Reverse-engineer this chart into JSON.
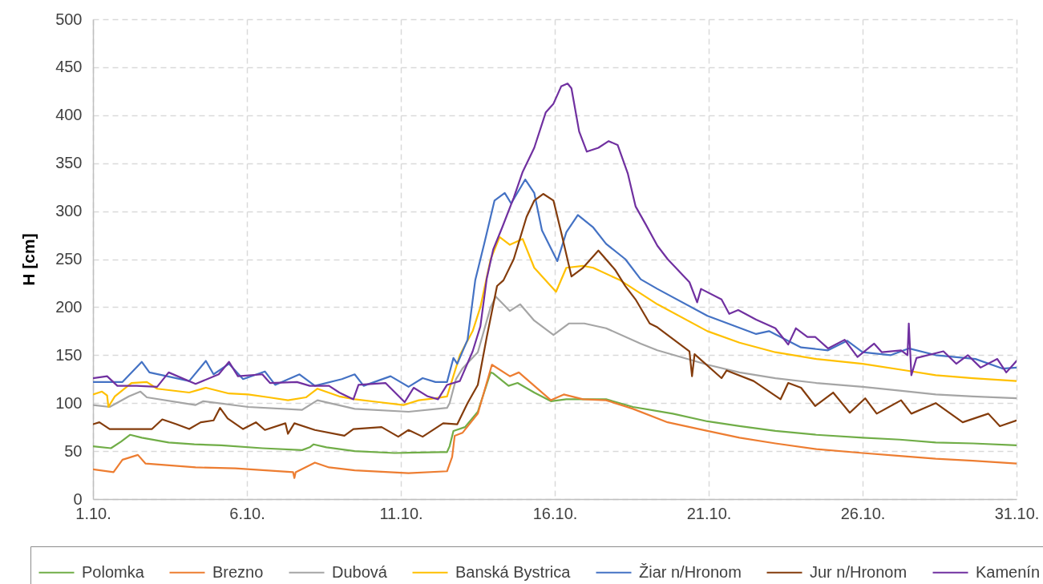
{
  "chart_data": {
    "type": "line",
    "ylabel": "H [cm]",
    "xlim": [
      "--10-01",
      "--10-31"
    ],
    "xticks": [
      {
        "value": "--10-01",
        "label": "1.10."
      },
      {
        "value": "--10-06",
        "label": "6.10."
      },
      {
        "value": "--10-11",
        "label": "11.10."
      },
      {
        "value": "--10-16",
        "label": "16.10."
      },
      {
        "value": "--10-21",
        "label": "21.10."
      },
      {
        "value": "--10-26",
        "label": "26.10."
      },
      {
        "value": "--10-31",
        "label": "31.10."
      }
    ],
    "ylim": [
      0,
      500
    ],
    "yticks": [
      0,
      50,
      100,
      150,
      200,
      250,
      300,
      350,
      400,
      450,
      500
    ],
    "grid": true,
    "legend": "bottom",
    "series": [
      {
        "name": "Polomka",
        "color": "#70ad47",
        "x": [
          "--10-01T00:00",
          "--10-01T14:00",
          "--10-01T22:00",
          "--10-02T05:00",
          "--10-02T14:00",
          "--10-03T11:00",
          "--10-04T07:00",
          "--10-05T04:00",
          "--10-06T12:00",
          "--10-07T19:00",
          "--10-08T01:00",
          "--10-08T04:00",
          "--10-08T14:00",
          "--10-09T12:00",
          "--10-10T19:00",
          "--10-12T07:00",
          "--10-12T12:00",
          "--10-12T14:00",
          "--10-12T17:00",
          "--10-13T02:00",
          "--10-13T12:00",
          "--10-13T22:00",
          "--10-14T00:00",
          "--10-14T12:00",
          "--10-14T19:00",
          "--10-15T08:00",
          "--10-15T21:00",
          "--10-16T09:00",
          "--10-17T00:00",
          "--10-17T16:00",
          "--10-18T13:00",
          "--10-19T20:00",
          "--10-20T23:00",
          "--10-22T00:00",
          "--10-23T04:00",
          "--10-24T12:00",
          "--10-26T00:00",
          "--10-27T05:00",
          "--10-28T09:00",
          "--10-29T14:00",
          "--10-31T00:00"
        ],
        "values": [
          55,
          53,
          60,
          67,
          64,
          59,
          57,
          56,
          53,
          51,
          54,
          57,
          54,
          50,
          48,
          49,
          49,
          55,
          71,
          75,
          91,
          132,
          131,
          118,
          121,
          111,
          102,
          104,
          104,
          104,
          96,
          89,
          81,
          76,
          71,
          67,
          64,
          62,
          59,
          58,
          56
        ]
      },
      {
        "name": "Brezno",
        "color": "#ed7d31",
        "x": [
          "--10-01T00:00",
          "--10-01T16:00",
          "--10-01T23:00",
          "--10-02T11:00",
          "--10-02T17:00",
          "--10-04T08:00",
          "--10-05T15:00",
          "--10-07T12:00",
          "--10-07T13:00",
          "--10-07T14:00",
          "--10-08T05:00",
          "--10-08T16:00",
          "--10-09T12:00",
          "--10-11T06:00",
          "--10-12T12:00",
          "--10-12T16:00",
          "--10-12T18:00",
          "--10-13T00:00",
          "--10-13T12:00",
          "--10-13T23:00",
          "--10-14T13:00",
          "--10-14T20:00",
          "--10-15T21:00",
          "--10-16T07:00",
          "--10-16T22:00",
          "--10-17T16:00",
          "--10-18T13:00",
          "--10-19T16:00",
          "--10-20T23:00",
          "--10-22T00:00",
          "--10-23T04:00",
          "--10-24T12:00",
          "--10-26T00:00",
          "--10-27T05:00",
          "--10-28T09:00",
          "--10-29T14:00",
          "--10-31T00:00"
        ],
        "values": [
          31,
          28,
          41,
          46,
          37,
          33,
          32,
          28,
          22,
          28,
          38,
          33,
          30,
          27,
          29,
          44,
          66,
          69,
          89,
          140,
          128,
          132,
          103,
          109,
          104,
          103,
          94,
          80,
          71,
          64,
          58,
          52,
          48,
          45,
          42,
          40,
          37
        ]
      },
      {
        "name": "Dubová",
        "color": "#a5a5a5",
        "x": [
          "--10-01T00:00",
          "--10-01T13:00",
          "--10-02T04:00",
          "--10-02T13:00",
          "--10-02T18:00",
          "--10-04T08:00",
          "--10-04T14:00",
          "--10-06T01:00",
          "--10-07T19:00",
          "--10-08T07:00",
          "--10-09T12:00",
          "--10-11T06:00",
          "--10-12T12:00",
          "--10-12T14:00",
          "--10-12T19:00",
          "--10-13T00:00",
          "--10-13T12:00",
          "--10-13T22:00",
          "--10-14T02:00",
          "--10-14T13:00",
          "--10-14T21:00",
          "--10-15T08:00",
          "--10-15T23:00",
          "--10-16T11:00",
          "--10-16T23:00",
          "--10-17T16:00",
          "--10-18T19:00",
          "--10-19T08:00",
          "--10-20T23:00",
          "--10-22T00:00",
          "--10-23T04:00",
          "--10-24T12:00",
          "--10-26T00:00",
          "--10-27T05:00",
          "--10-28T09:00",
          "--10-29T14:00",
          "--10-31T00:00"
        ],
        "values": [
          98,
          96,
          107,
          112,
          106,
          98,
          102,
          96,
          93,
          103,
          94,
          91,
          95,
          100,
          125,
          136,
          153,
          200,
          211,
          196,
          203,
          186,
          171,
          183,
          183,
          178,
          162,
          155,
          140,
          132,
          126,
          121,
          117,
          113,
          109,
          107,
          105
        ]
      },
      {
        "name": "Banská Bystrica",
        "color": "#ffc000",
        "x": [
          "--10-01T00:00",
          "--10-01T07:00",
          "--10-01T11:00",
          "--10-01T12:00",
          "--10-01T17:00",
          "--10-02T06:00",
          "--10-02T18:00",
          "--10-03T02:00",
          "--10-04T03:00",
          "--10-04T16:00",
          "--10-05T10:00",
          "--10-06T01:00",
          "--10-06T17:00",
          "--10-07T08:00",
          "--10-07T22:00",
          "--10-08T07:00",
          "--10-09T00:00",
          "--10-09T12:00",
          "--10-10T07:00",
          "--10-11T02:00",
          "--10-11T14:00",
          "--10-12T03:00",
          "--10-12T12:00",
          "--10-12T22:00",
          "--10-13T08:00",
          "--10-13T14:00",
          "--10-13T22:00",
          "--10-14T05:00",
          "--10-14T13:00",
          "--10-14T23:00",
          "--10-15T08:00",
          "--10-16T01:00",
          "--10-16T09:00",
          "--10-16T22:00",
          "--10-17T06:00",
          "--10-18T03:00",
          "--10-19T08:00",
          "--10-20T23:00",
          "--10-22T00:00",
          "--10-23T04:00",
          "--10-24T12:00",
          "--10-26T00:00",
          "--10-27T10:00",
          "--10-28T09:00",
          "--10-29T14:00",
          "--10-31T00:00"
        ],
        "values": [
          109,
          112,
          108,
          96,
          107,
          121,
          122,
          115,
          111,
          116,
          110,
          109,
          106,
          103,
          106,
          115,
          107,
          104,
          101,
          98,
          103,
          105,
          107,
          150,
          175,
          200,
          250,
          273,
          265,
          271,
          241,
          216,
          241,
          243,
          241,
          228,
          203,
          175,
          163,
          153,
          146,
          141,
          134,
          129,
          126,
          123
        ]
      },
      {
        "name": "Žiar n/Hronom",
        "color": "#4472c4",
        "x": [
          "--10-01T00:00",
          "--10-01T23:00",
          "--10-02T14:00",
          "--10-02T20:00",
          "--10-04T03:00",
          "--10-04T16:00",
          "--10-04T22:00",
          "--10-05T10:00",
          "--10-05T21:00",
          "--10-06T14:00",
          "--10-06T22:00",
          "--10-07T17:00",
          "--10-08T05:00",
          "--10-09T02:00",
          "--10-09T12:00",
          "--10-09T19:00",
          "--10-10T16:00",
          "--10-11T06:00",
          "--10-11T17:00",
          "--10-12T03:00",
          "--10-12T12:00",
          "--10-12T17:00",
          "--10-12T20:00",
          "--10-13T04:00",
          "--10-13T10:00",
          "--10-13T17:00",
          "--10-14T01:00",
          "--10-14T09:00",
          "--10-14T14:00",
          "--10-15T01:00",
          "--10-15T08:00",
          "--10-15T14:00",
          "--10-16T02:00",
          "--10-16T09:00",
          "--10-16T18:00",
          "--10-17T06:00",
          "--10-17T16:00",
          "--10-18T07:00",
          "--10-18T19:00",
          "--10-19T08:00",
          "--10-20T23:00",
          "--10-22T13:00",
          "--10-22T23:00",
          "--10-24T00:00",
          "--10-24T21:00",
          "--10-25T12:00",
          "--10-26T00:00",
          "--10-26T22:00",
          "--10-27T12:00",
          "--10-28T09:00",
          "--10-29T16:00",
          "--10-30T13:00",
          "--10-31T00:00"
        ],
        "values": [
          122,
          122,
          143,
          132,
          123,
          144,
          130,
          141,
          125,
          133,
          119,
          130,
          118,
          125,
          130,
          118,
          128,
          117,
          126,
          122,
          122,
          147,
          141,
          166,
          228,
          266,
          311,
          319,
          308,
          333,
          319,
          280,
          248,
          278,
          296,
          283,
          266,
          250,
          229,
          219,
          191,
          172,
          175,
          158,
          155,
          165,
          153,
          150,
          157,
          150,
          146,
          136,
          137
        ]
      },
      {
        "name": "Jur n/Hronom",
        "color": "#843c0c",
        "x": [
          "--10-01T00:00",
          "--10-01T05:00",
          "--10-01T13:00",
          "--10-02T22:00",
          "--10-03T06:00",
          "--10-03T17:00",
          "--10-04T03:00",
          "--10-04T12:00",
          "--10-04T22:00",
          "--10-05T03:00",
          "--10-05T09:00",
          "--10-05T21:00",
          "--10-06T07:00",
          "--10-06T14:00",
          "--10-07T06:00",
          "--10-07T08:00",
          "--10-07T13:00",
          "--10-08T05:00",
          "--10-09T04:00",
          "--10-09T11:00",
          "--10-10T09:00",
          "--10-10T22:00",
          "--10-11T06:00",
          "--10-11T17:00",
          "--10-12T09:00",
          "--10-12T20:00",
          "--10-13T04:00",
          "--10-13T12:00",
          "--10-13T19:00",
          "--10-14T03:00",
          "--10-14T08:00",
          "--10-14T16:00",
          "--10-15T02:00",
          "--10-15T08:00",
          "--10-15T15:00",
          "--10-15T23:00",
          "--10-16T05:00",
          "--10-16T13:00",
          "--10-16T22:00",
          "--10-17T10:00",
          "--10-17T23:00",
          "--10-18T07:00",
          "--10-18T15:00",
          "--10-19T02:00",
          "--10-19T08:00",
          "--10-20T09:00",
          "--10-20T11:00",
          "--10-20T13:00",
          "--10-21T10:00",
          "--10-21T14:00",
          "--10-22T11:00",
          "--10-23T08:00",
          "--10-23T14:00",
          "--10-24T00:00",
          "--10-24T11:00",
          "--10-25T01:00",
          "--10-25T14:00",
          "--10-26T02:00",
          "--10-26T11:00",
          "--10-27T06:00",
          "--10-27T14:00",
          "--10-28T09:00",
          "--10-29T06:00",
          "--10-30T02:00",
          "--10-30T11:00",
          "--10-31T00:00"
        ],
        "values": [
          78,
          80,
          73,
          73,
          83,
          78,
          73,
          80,
          82,
          95,
          84,
          73,
          80,
          72,
          79,
          68,
          79,
          72,
          66,
          73,
          75,
          65,
          72,
          65,
          79,
          78,
          100,
          119,
          169,
          222,
          228,
          250,
          294,
          311,
          318,
          311,
          278,
          232,
          241,
          259,
          239,
          222,
          208,
          183,
          179,
          154,
          128,
          151,
          126,
          134,
          123,
          104,
          121,
          116,
          97,
          111,
          90,
          105,
          89,
          103,
          89,
          100,
          80,
          89,
          76,
          82
        ]
      },
      {
        "name": "Kamenín",
        "color": "#7030a0",
        "x": [
          "--10-01T00:00",
          "--10-01T11:00",
          "--10-01T19:00",
          "--10-02T10:00",
          "--10-03T02:00",
          "--10-03T11:00",
          "--10-04T08:00",
          "--10-05T02:00",
          "--10-05T10:00",
          "--10-05T17:00",
          "--10-06T12:00",
          "--10-06T18:00",
          "--10-07T15:00",
          "--10-08T01:00",
          "--10-08T16:00",
          "--10-09T00:00",
          "--10-09T11:00",
          "--10-09T15:00",
          "--10-10T12:00",
          "--10-11T03:00",
          "--10-11T10:00",
          "--10-11T21:00",
          "--10-12T05:00",
          "--10-12T12:00",
          "--10-12T22:00",
          "--10-13T08:00",
          "--10-13T14:00",
          "--10-13T19:00",
          "--10-14T00:00",
          "--10-14T07:00",
          "--10-14T16:00",
          "--10-14T23:00",
          "--10-15T08:00",
          "--10-15T17:00",
          "--10-15T23:00",
          "--10-16T05:00",
          "--10-16T10:00",
          "--10-16T13:00",
          "--10-16T19:00",
          "--10-17T01:00",
          "--10-17T10:00",
          "--10-17T18:00",
          "--10-18T01:00",
          "--10-18T09:00",
          "--10-18T15:00",
          "--10-18T23:00",
          "--10-19T08:00",
          "--10-19T16:00",
          "--10-20T09:00",
          "--10-20T15:00",
          "--10-20T18:00",
          "--10-21T10:00",
          "--10-21T16:00",
          "--10-21T23:00",
          "--10-22T13:00",
          "--10-23T04:00",
          "--10-23T14:00",
          "--10-23T20:00",
          "--10-24T05:00",
          "--10-24T11:00",
          "--10-24T21:00",
          "--10-25T10:00",
          "--10-25T20:00",
          "--10-26T09:00",
          "--10-26T15:00",
          "--10-27T06:00",
          "--10-27T11:00",
          "--10-27T12:00",
          "--10-27T14:00",
          "--10-27T18:00",
          "--10-28T15:00",
          "--10-29T01:00",
          "--10-29T10:00",
          "--10-29T20:00",
          "--10-30T09:00",
          "--10-30T16:00",
          "--10-31T00:00"
        ],
        "values": [
          126,
          128,
          118,
          118,
          117,
          132,
          120,
          130,
          143,
          128,
          130,
          121,
          122,
          118,
          118,
          111,
          104,
          119,
          121,
          101,
          116,
          107,
          104,
          119,
          123,
          154,
          180,
          230,
          260,
          283,
          314,
          341,
          366,
          403,
          412,
          430,
          433,
          428,
          383,
          362,
          366,
          373,
          369,
          339,
          305,
          286,
          264,
          250,
          226,
          205,
          219,
          208,
          193,
          197,
          187,
          178,
          161,
          178,
          169,
          169,
          157,
          166,
          148,
          162,
          153,
          155,
          150,
          183,
          129,
          147,
          154,
          141,
          150,
          137,
          146,
          132,
          144
        ]
      }
    ]
  }
}
